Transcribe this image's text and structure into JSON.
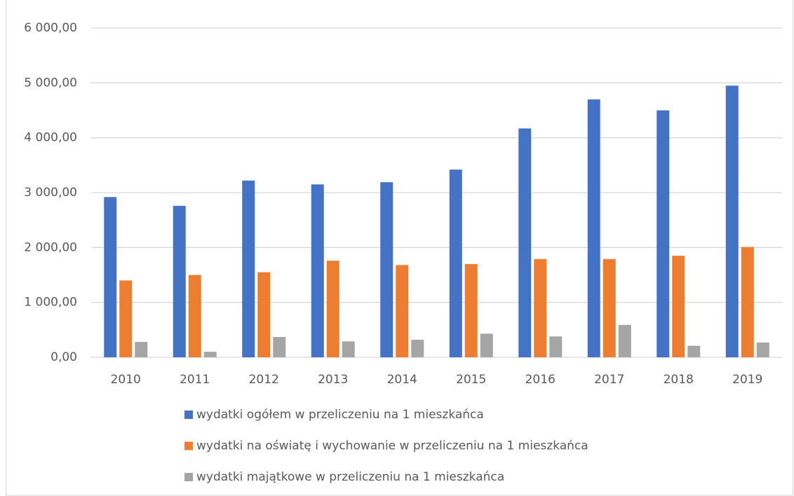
{
  "chart_data": {
    "type": "bar",
    "categories": [
      "2010",
      "2011",
      "2012",
      "2013",
      "2014",
      "2015",
      "2016",
      "2017",
      "2018",
      "2019"
    ],
    "series": [
      {
        "name": "wydatki ogółem w przeliczeniu na 1 mieszkańca",
        "color": "#4472c4",
        "values": [
          2920,
          2760,
          3220,
          3150,
          3190,
          3420,
          4170,
          4700,
          4500,
          4950
        ]
      },
      {
        "name": "wydatki na oświatę i wychowanie w przeliczeniu na 1 mieszkańca",
        "color": "#ed7d31",
        "values": [
          1400,
          1500,
          1550,
          1760,
          1680,
          1700,
          1790,
          1790,
          1850,
          2010
        ]
      },
      {
        "name": "wydatki majątkowe w przeliczeniu na 1 mieszkańca",
        "color": "#a5a5a5",
        "values": [
          280,
          100,
          370,
          290,
          320,
          430,
          380,
          590,
          210,
          270
        ]
      }
    ],
    "ylim": [
      0,
      6000
    ],
    "yticks": [
      {
        "value": 0,
        "label": "0,00"
      },
      {
        "value": 1000,
        "label": "1 000,00"
      },
      {
        "value": 2000,
        "label": "2 000,00"
      },
      {
        "value": 3000,
        "label": "3 000,00"
      },
      {
        "value": 4000,
        "label": "4 000,00"
      },
      {
        "value": 5000,
        "label": "5 000,00"
      },
      {
        "value": 6000,
        "label": "6 000,00"
      }
    ],
    "grid": true,
    "legend": "bottom"
  }
}
